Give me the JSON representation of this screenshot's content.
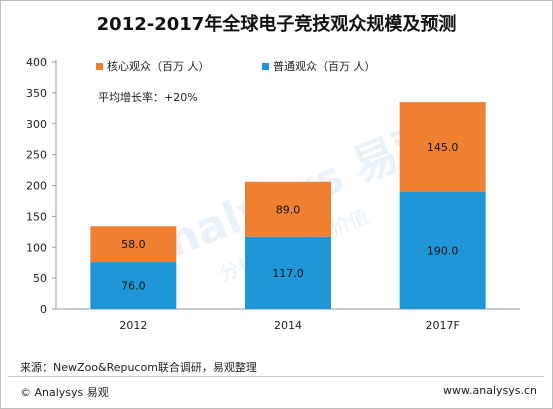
{
  "title": "2012-2017年全球电子竞技观众规模及预测",
  "chart_data": {
    "type": "bar",
    "stacked": true,
    "categories": [
      "2012",
      "2014",
      "2017F"
    ],
    "series": [
      {
        "name": "普通观众（百万 人）",
        "values": [
          76.0,
          117.0,
          190.0
        ],
        "color": "#1f97d7"
      },
      {
        "name": "核心观众（百万 人）",
        "values": [
          58.0,
          89.0,
          145.0
        ],
        "color": "#ef7f31"
      }
    ],
    "data_labels": [
      [
        "76.0",
        "117.0",
        "190.0"
      ],
      [
        "58.0",
        "89.0",
        "145.0"
      ]
    ],
    "ylim": [
      0,
      400
    ],
    "yticks": [
      "0",
      "50",
      "100",
      "150",
      "200",
      "250",
      "300",
      "350",
      "400"
    ],
    "ytick_values": [
      0,
      50,
      100,
      150,
      200,
      250,
      300,
      350,
      400
    ],
    "annotation": "平均增长率：+20%",
    "legend_position": "top",
    "grid": false
  },
  "footer": {
    "source": "来源：NewZoo&Repucom联合调研，易观整理",
    "copyright": "© Analysys 易观",
    "website": "www.analysys.cn"
  },
  "watermark": {
    "text": "Analysys 易观",
    "subtext": "分析驱动用户价值",
    "color": "#e9f1fa"
  }
}
